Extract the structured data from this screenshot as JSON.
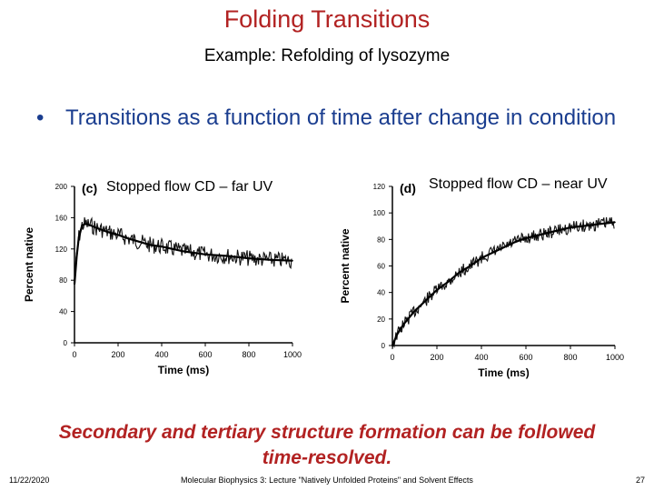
{
  "slide": {
    "title": "Folding Transitions",
    "subtitle": "Example: Refolding of lysozyme",
    "bullet": "Transitions as a function of time after change in condition",
    "bullet_marker": "•",
    "conclusion_line1": "Secondary and tertiary structure formation can be followed",
    "conclusion_line2": "time-resolved.",
    "footer_date": "11/22/2020",
    "footer_center": "Molecular Biophysics 3: Lecture \"Natively Unfolded Proteins\" and Solvent Effects",
    "footer_page": "27",
    "accent_color": "#b22222",
    "bullet_color": "#1a3d8f"
  },
  "chart_data": [
    {
      "type": "line",
      "panel": "(c)",
      "caption": "Stopped flow CD – far UV",
      "xlabel": "Time (ms)",
      "ylabel": "Percent native",
      "xlim": [
        0,
        1000
      ],
      "ylim": [
        0,
        200
      ],
      "xticks": [
        0,
        200,
        400,
        600,
        800,
        1000
      ],
      "yticks": [
        0,
        40,
        80,
        120,
        160,
        200
      ],
      "series": [
        {
          "x": [
            0,
            10,
            20,
            35,
            50,
            75,
            100,
            150,
            200,
            250,
            300,
            350,
            400,
            450,
            500,
            600,
            700,
            800,
            900,
            1000
          ],
          "y": [
            75,
            110,
            135,
            150,
            152,
            150,
            147,
            142,
            138,
            133,
            129,
            125,
            123,
            120,
            117,
            113,
            111,
            108,
            106,
            105
          ]
        }
      ]
    },
    {
      "type": "line",
      "panel": "(d)",
      "caption": "Stopped flow CD – near UV",
      "xlabel": "Time (ms)",
      "ylabel": "Percent native",
      "xlim": [
        0,
        1000
      ],
      "ylim": [
        0,
        120
      ],
      "xticks": [
        0,
        200,
        400,
        600,
        800,
        1000
      ],
      "yticks": [
        0,
        20,
        40,
        60,
        80,
        100,
        120
      ],
      "series": [
        {
          "x": [
            0,
            20,
            50,
            100,
            150,
            200,
            250,
            300,
            350,
            400,
            450,
            500,
            550,
            600,
            650,
            700,
            750,
            800,
            850,
            900,
            950,
            1000
          ],
          "y": [
            0,
            8,
            16,
            26,
            34,
            42,
            48,
            55,
            60,
            66,
            70,
            74,
            78,
            81,
            83,
            85,
            87,
            89,
            90,
            91,
            92,
            93
          ]
        }
      ]
    }
  ]
}
